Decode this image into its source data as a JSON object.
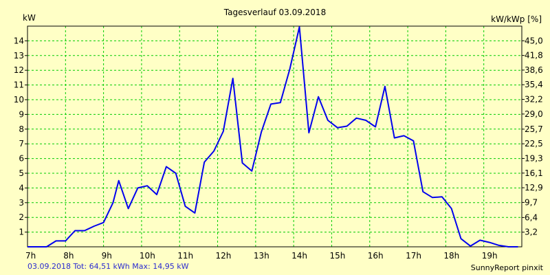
{
  "chart_data": {
    "type": "line",
    "title": "Tagesverlauf 03.09.2018",
    "ylabel": "kW",
    "y2label": "kW/kWp [%]",
    "xlim": [
      7,
      20
    ],
    "ylim": [
      0,
      15
    ],
    "y2lim": [
      0,
      48.2
    ],
    "x_ticks": [
      7,
      8,
      9,
      10,
      11,
      12,
      13,
      14,
      15,
      16,
      17,
      18,
      19
    ],
    "x_tick_labels": [
      "7h",
      "8h",
      "9h",
      "10h",
      "11h",
      "12h",
      "13h",
      "14h",
      "15h",
      "16h",
      "17h",
      "18h",
      "19h"
    ],
    "y_ticks": [
      1,
      2,
      3,
      4,
      5,
      6,
      7,
      8,
      9,
      10,
      11,
      12,
      13,
      14
    ],
    "y_tick_labels": [
      "1",
      "2",
      "3",
      "4",
      "5",
      "6",
      "7",
      "8",
      "9",
      "10",
      "11",
      "12",
      "13",
      "14"
    ],
    "y2_ticks": [
      3.2,
      6.4,
      9.7,
      12.9,
      16.1,
      19.3,
      22.5,
      25.7,
      29.0,
      32.2,
      35.4,
      38.6,
      41.8,
      45.0
    ],
    "y2_tick_labels": [
      "3,2",
      "6,4",
      "9,7",
      "12,9",
      "16,1",
      "19,3",
      "22,5",
      "25,7",
      "29,0",
      "32,2",
      "35,4",
      "38,6",
      "41,8",
      "45,0"
    ],
    "grid": true,
    "grid_color": "#00cc00",
    "series": [
      {
        "color": "#0000ee",
        "x": [
          7.0,
          7.5,
          7.75,
          8.0,
          8.25,
          8.5,
          8.75,
          9.0,
          9.25,
          9.4,
          9.65,
          9.9,
          10.15,
          10.4,
          10.65,
          10.9,
          11.15,
          11.4,
          11.65,
          11.9,
          12.15,
          12.4,
          12.65,
          12.9,
          13.15,
          13.4,
          13.65,
          13.9,
          14.15,
          14.4,
          14.65,
          14.9,
          15.15,
          15.4,
          15.65,
          15.9,
          16.15,
          16.4,
          16.65,
          16.9,
          17.15,
          17.4,
          17.65,
          17.9,
          18.15,
          18.4,
          18.65,
          18.9,
          19.15,
          19.4,
          19.65,
          19.9
        ],
        "values": [
          0.0,
          0.0,
          0.4,
          0.4,
          1.1,
          1.1,
          1.4,
          1.65,
          3.0,
          4.5,
          2.6,
          4.0,
          4.15,
          3.55,
          5.45,
          5.0,
          2.75,
          2.3,
          5.75,
          6.5,
          7.85,
          11.45,
          5.7,
          5.15,
          7.8,
          9.7,
          9.8,
          12.1,
          14.95,
          7.75,
          10.2,
          8.6,
          8.1,
          8.2,
          8.75,
          8.6,
          8.15,
          10.9,
          7.4,
          7.55,
          7.2,
          3.75,
          3.35,
          3.4,
          2.6,
          0.55,
          0.05,
          0.45,
          0.3,
          0.1,
          0.0,
          0.0
        ]
      }
    ]
  },
  "footer": {
    "summary": "03.09.2018 Tot: 64,51 kWh Max: 14,95 kW",
    "brand": "SunnyReport pinxit"
  }
}
